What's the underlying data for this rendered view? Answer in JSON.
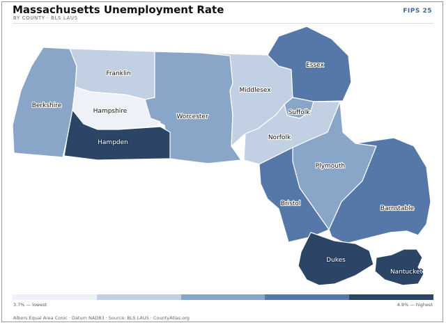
{
  "header": {
    "title": "Massachusetts Unemployment Rate",
    "subtitle": "BY COUNTY · BLS LAUS",
    "fips": "FIPS 25"
  },
  "legend": {
    "low_label": "3.7% — lowest",
    "high_label": "4.9% — highest",
    "classes": [
      "#eef2f8",
      "#c2d0e3",
      "#89a6c9",
      "#5678a8",
      "#2c4466"
    ]
  },
  "footer": {
    "note": "Albers Equal Area Conic · Datum NAD83 · Source: BLS LAUS · CountyAtlas.org"
  },
  "counties": [
    {
      "id": "berkshire",
      "name": "Berkshire",
      "class": 2
    },
    {
      "id": "franklin",
      "name": "Franklin",
      "class": 1
    },
    {
      "id": "hampshire",
      "name": "Hampshire",
      "class": 0
    },
    {
      "id": "hampden",
      "name": "Hampden",
      "class": 4
    },
    {
      "id": "worcester",
      "name": "Worcester",
      "class": 2
    },
    {
      "id": "middlesex",
      "name": "Middlesex",
      "class": 1
    },
    {
      "id": "essex",
      "name": "Essex",
      "class": 3
    },
    {
      "id": "suffolk",
      "name": "Suffolk",
      "class": 2
    },
    {
      "id": "norfolk",
      "name": "Norfolk",
      "class": 1
    },
    {
      "id": "plymouth",
      "name": "Plymouth",
      "class": 2
    },
    {
      "id": "bristol",
      "name": "Bristol",
      "class": 3
    },
    {
      "id": "barnstable",
      "name": "Barnstable",
      "class": 3
    },
    {
      "id": "dukes",
      "name": "Dukes",
      "class": 4
    },
    {
      "id": "nantucket",
      "name": "Nantucket",
      "class": 4
    }
  ]
}
